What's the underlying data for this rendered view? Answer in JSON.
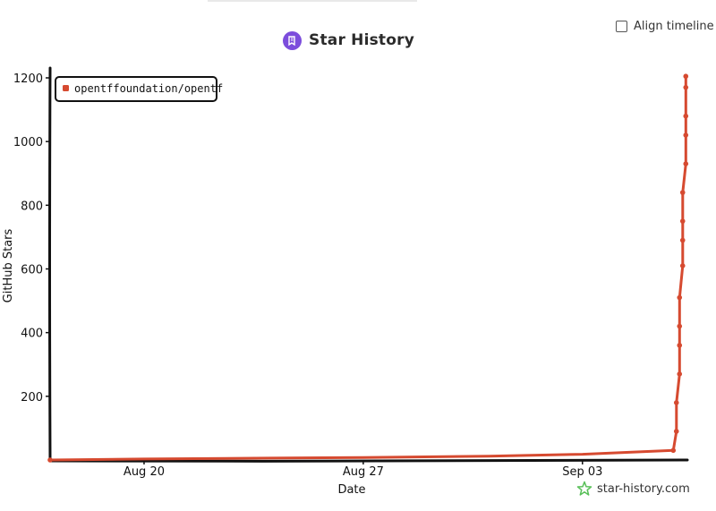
{
  "header": {
    "title": "Star History",
    "align_timeline_label": "Align timeline",
    "logo_icon": "star-history-logo-icon"
  },
  "watermark": {
    "text": "star-history.com",
    "icon": "star-outline-icon",
    "icon_color": "#5ac05a"
  },
  "chart_data": {
    "type": "line",
    "title": "Star History",
    "xlabel": "Date",
    "ylabel": "GitHub Stars",
    "x_ticks": [
      "Aug 20",
      "Aug 27",
      "Sep 03"
    ],
    "y_ticks": [
      200,
      400,
      600,
      800,
      1000,
      1200
    ],
    "xlim": [
      "2023-08-17",
      "2023-09-06"
    ],
    "ylim": [
      0,
      1200
    ],
    "grid": false,
    "legend_position": "top-left",
    "series": [
      {
        "name": "opentffoundation/opentf",
        "color": "#d64a30",
        "points": [
          [
            "2023-08-17",
            0
          ],
          [
            "2023-08-20",
            3
          ],
          [
            "2023-08-24",
            6
          ],
          [
            "2023-08-27",
            8
          ],
          [
            "2023-08-31",
            12
          ],
          [
            "2023-09-03",
            18
          ],
          [
            "2023-09-05.9",
            30
          ],
          [
            "2023-09-06.0",
            90
          ],
          [
            "2023-09-06.0",
            180
          ],
          [
            "2023-09-06.1",
            270
          ],
          [
            "2023-09-06.1",
            360
          ],
          [
            "2023-09-06.1",
            420
          ],
          [
            "2023-09-06.1",
            510
          ],
          [
            "2023-09-06.2",
            610
          ],
          [
            "2023-09-06.2",
            690
          ],
          [
            "2023-09-06.2",
            750
          ],
          [
            "2023-09-06.2",
            840
          ],
          [
            "2023-09-06.3",
            930
          ],
          [
            "2023-09-06.3",
            1020
          ],
          [
            "2023-09-06.3",
            1080
          ],
          [
            "2023-09-06.3",
            1170
          ],
          [
            "2023-09-06.3",
            1205
          ]
        ]
      }
    ]
  }
}
